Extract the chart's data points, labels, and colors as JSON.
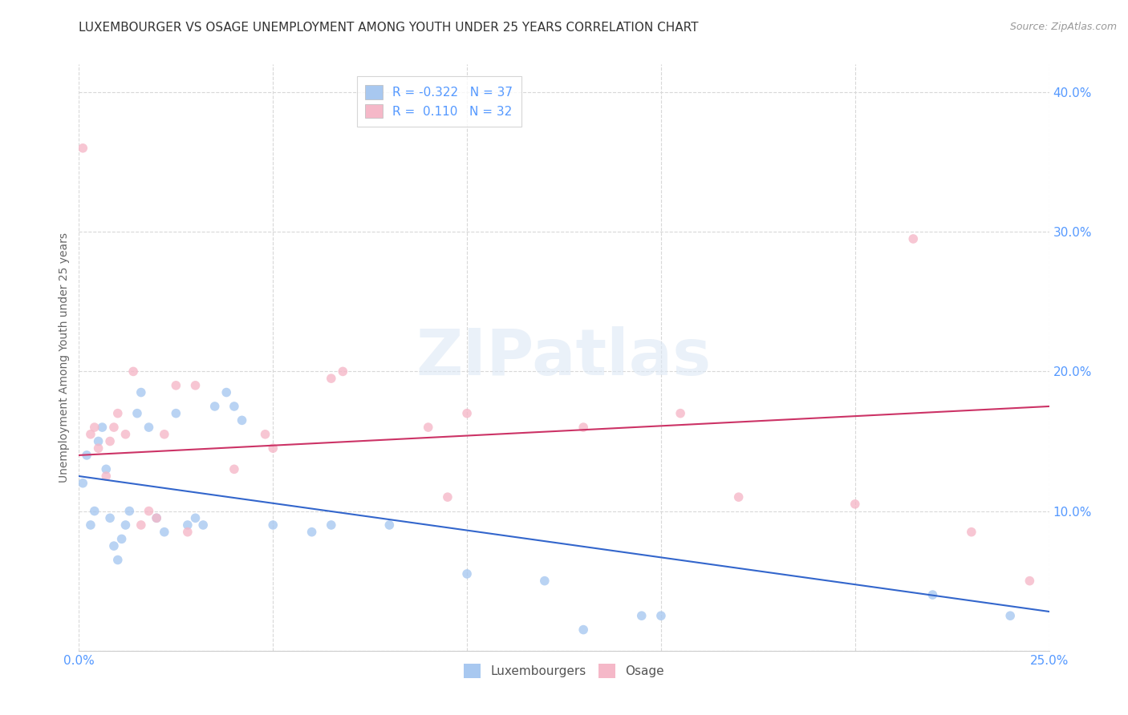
{
  "title": "LUXEMBOURGER VS OSAGE UNEMPLOYMENT AMONG YOUTH UNDER 25 YEARS CORRELATION CHART",
  "source": "Source: ZipAtlas.com",
  "ylabel": "Unemployment Among Youth under 25 years",
  "xlim": [
    0.0,
    0.25
  ],
  "ylim": [
    0.0,
    0.42
  ],
  "xticks": [
    0.0,
    0.05,
    0.1,
    0.15,
    0.2,
    0.25
  ],
  "yticks": [
    0.0,
    0.1,
    0.2,
    0.3,
    0.4
  ],
  "xticklabels": [
    "0.0%",
    "",
    "",
    "",
    "",
    "25.0%"
  ],
  "yticklabels": [
    "",
    "10.0%",
    "20.0%",
    "30.0%",
    "40.0%"
  ],
  "background_color": "#ffffff",
  "grid_color": "#d8d8d8",
  "watermark_text": "ZIPatlas",
  "lux_scatter_color": "#a8c8f0",
  "osage_scatter_color": "#f5b8c8",
  "lux_line_color": "#3366cc",
  "osage_line_color": "#cc3366",
  "R_lux": -0.322,
  "N_lux": 37,
  "R_osage": 0.11,
  "N_osage": 32,
  "lux_line_x0": 0.0,
  "lux_line_y0": 0.125,
  "lux_line_x1": 0.25,
  "lux_line_y1": 0.028,
  "osage_line_x0": 0.0,
  "osage_line_y0": 0.14,
  "osage_line_x1": 0.25,
  "osage_line_y1": 0.175,
  "lux_x": [
    0.001,
    0.002,
    0.003,
    0.004,
    0.005,
    0.006,
    0.007,
    0.008,
    0.009,
    0.01,
    0.011,
    0.012,
    0.013,
    0.015,
    0.016,
    0.018,
    0.02,
    0.022,
    0.025,
    0.028,
    0.03,
    0.032,
    0.035,
    0.038,
    0.04,
    0.042,
    0.05,
    0.06,
    0.065,
    0.08,
    0.1,
    0.12,
    0.13,
    0.145,
    0.15,
    0.22,
    0.24
  ],
  "lux_y": [
    0.12,
    0.14,
    0.09,
    0.1,
    0.15,
    0.16,
    0.13,
    0.095,
    0.075,
    0.065,
    0.08,
    0.09,
    0.1,
    0.17,
    0.185,
    0.16,
    0.095,
    0.085,
    0.17,
    0.09,
    0.095,
    0.09,
    0.175,
    0.185,
    0.175,
    0.165,
    0.09,
    0.085,
    0.09,
    0.09,
    0.055,
    0.05,
    0.015,
    0.025,
    0.025,
    0.04,
    0.025
  ],
  "osage_x": [
    0.001,
    0.003,
    0.004,
    0.005,
    0.007,
    0.008,
    0.009,
    0.01,
    0.012,
    0.014,
    0.016,
    0.018,
    0.02,
    0.022,
    0.025,
    0.028,
    0.03,
    0.04,
    0.048,
    0.05,
    0.065,
    0.068,
    0.09,
    0.095,
    0.1,
    0.13,
    0.155,
    0.17,
    0.2,
    0.215,
    0.23,
    0.245
  ],
  "osage_y": [
    0.36,
    0.155,
    0.16,
    0.145,
    0.125,
    0.15,
    0.16,
    0.17,
    0.155,
    0.2,
    0.09,
    0.1,
    0.095,
    0.155,
    0.19,
    0.085,
    0.19,
    0.13,
    0.155,
    0.145,
    0.195,
    0.2,
    0.16,
    0.11,
    0.17,
    0.16,
    0.17,
    0.11,
    0.105,
    0.295,
    0.085,
    0.05
  ],
  "tick_color": "#5599ff",
  "tick_fontsize": 11,
  "title_fontsize": 11,
  "source_fontsize": 9,
  "ylabel_fontsize": 10,
  "legend_fontsize": 11,
  "marker_size": 70
}
